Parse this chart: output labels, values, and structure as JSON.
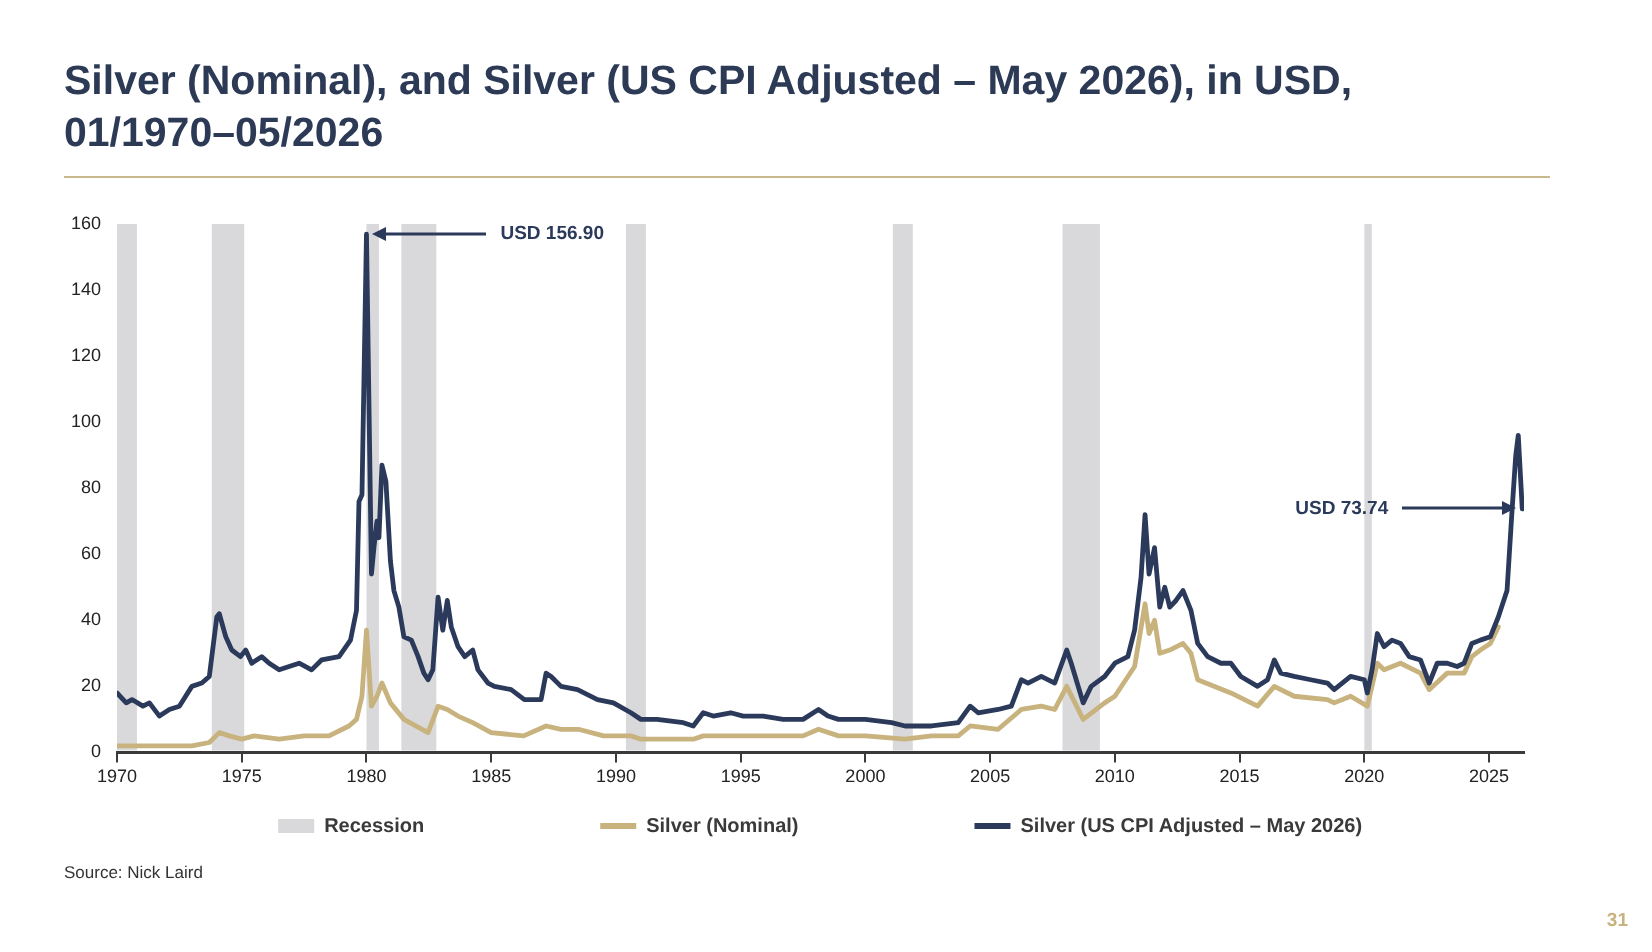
{
  "chart_data": {
    "type": "line",
    "title": "Silver (Nominal), and Silver (US CPI Adjusted – May 2026), in USD, 01/1970–05/2026",
    "xlim": [
      1970,
      2026.4
    ],
    "xticks": [
      1970,
      1975,
      1980,
      1985,
      1990,
      1995,
      2000,
      2005,
      2010,
      2015,
      2020,
      2025
    ],
    "ylim": [
      0,
      160
    ],
    "yticks": [
      0,
      20,
      40,
      60,
      80,
      100,
      120,
      140,
      160
    ],
    "marker": "none",
    "line_style": "solid",
    "legend": "bottom",
    "bands": [
      {
        "axis": "x",
        "from": 1970,
        "to": 1970.8,
        "label": "Recession",
        "color": "#d9d9dc"
      },
      {
        "axis": "x",
        "from": 1973.8,
        "to": 1975.1,
        "color": "#d9d9dc"
      },
      {
        "axis": "x",
        "from": 1980,
        "to": 1980.5,
        "color": "#d9d9dc"
      },
      {
        "axis": "x",
        "from": 1981.4,
        "to": 1982.8,
        "color": "#d9d9dc"
      },
      {
        "axis": "x",
        "from": 1990.4,
        "to": 1991.2,
        "color": "#d9d9dc"
      },
      {
        "axis": "x",
        "from": 2001.1,
        "to": 2001.9,
        "color": "#d9d9dc"
      },
      {
        "axis": "x",
        "from": 2007.9,
        "to": 2009.4,
        "color": "#d9d9dc"
      },
      {
        "axis": "x",
        "from": 2020,
        "to": 2020.3,
        "color": "#d9d9dc"
      }
    ],
    "annotations": [
      {
        "text": "USD 156.90",
        "x": 1980,
        "y": 156.9
      },
      {
        "text": "USD 73.74",
        "x": 2026.33,
        "y": 73.74
      },
      "Source: Nick Laird",
      "31"
    ],
    "series": [
      {
        "name": "Silver (Nominal)",
        "color": "#c8b37e",
        "x": [
          1970,
          1971,
          1972,
          1973,
          1973.7,
          1974.1,
          1974.5,
          1975,
          1975.5,
          1976.5,
          1977.5,
          1978.5,
          1979.3,
          1979.6,
          1979.82,
          1980,
          1980.2,
          1980.42,
          1980.62,
          1980.96,
          1981.5,
          1982.47,
          1982.87,
          1983.24,
          1983.67,
          1984.26,
          1985,
          1986.3,
          1987.2,
          1987.8,
          1988.5,
          1989.5,
          1990.6,
          1991,
          1992.7,
          1993.1,
          1993.5,
          1994.6,
          1995.9,
          1997.5,
          1998.12,
          1998.92,
          2000,
          2001.59,
          2002.65,
          2003.72,
          2004.2,
          2005.32,
          2006.25,
          2007.05,
          2007.59,
          2008.07,
          2008.73,
          2009.59,
          2010,
          2010.79,
          2011.21,
          2011.37,
          2011.59,
          2011.8,
          2012.2,
          2012.73,
          2013.05,
          2013.32,
          2014.65,
          2015.72,
          2016.39,
          2017.19,
          2018.52,
          2018.79,
          2019.45,
          2020.12,
          2020.52,
          2020.79,
          2021.45,
          2022.25,
          2022.6,
          2023.32,
          2024,
          2024.31,
          2024.65,
          2025.05,
          2025.37
        ],
        "values": [
          2,
          2,
          2,
          2,
          3,
          6,
          5,
          4,
          5,
          4,
          5,
          5,
          8,
          10,
          17,
          37,
          14,
          17,
          21,
          15,
          10,
          6,
          14,
          13,
          11,
          9,
          6,
          5,
          8,
          7,
          7,
          5,
          5,
          4,
          4,
          4,
          5,
          5,
          5,
          5,
          7,
          5,
          5,
          4,
          5,
          5,
          8,
          7,
          13,
          14,
          13,
          20,
          10,
          15,
          17,
          26,
          45,
          36,
          40,
          30,
          31,
          33,
          30,
          22,
          18,
          14,
          20,
          17,
          16,
          15,
          17,
          14,
          27,
          25,
          27,
          24,
          19,
          24,
          24,
          29,
          31,
          33,
          38
        ]
      },
      {
        "name": "Silver (US CPI Adjusted – May 2026)",
        "color": "#2b3a5b",
        "x": [
          1970,
          1970.37,
          1970.6,
          1971.04,
          1971.3,
          1971.7,
          1972.1,
          1972.5,
          1973,
          1973.4,
          1973.7,
          1974,
          1974.1,
          1974.36,
          1974.6,
          1974.95,
          1975.16,
          1975.4,
          1975.8,
          1976.1,
          1976.5,
          1976.9,
          1977.3,
          1977.8,
          1978.2,
          1978.9,
          1979.36,
          1979.6,
          1979.7,
          1979.82,
          1980,
          1980.2,
          1980.3,
          1980.42,
          1980.5,
          1980.62,
          1980.78,
          1980.96,
          1981.1,
          1981.3,
          1981.5,
          1981.8,
          1982.07,
          1982.3,
          1982.47,
          1982.66,
          1982.87,
          1983.06,
          1983.24,
          1983.4,
          1983.67,
          1983.94,
          1984.26,
          1984.47,
          1984.87,
          1985.13,
          1985.8,
          1986.33,
          1987,
          1987.2,
          1987.4,
          1987.8,
          1988.46,
          1989.26,
          1989.9,
          1990.6,
          1991,
          1991.65,
          1992.7,
          1993.1,
          1993.5,
          1993.9,
          1994.6,
          1995.1,
          1995.9,
          1996.7,
          1997.5,
          1998.12,
          1998.5,
          1998.92,
          2000,
          2001.05,
          2001.59,
          2002.65,
          2003.72,
          2004.2,
          2004.52,
          2005.32,
          2005.85,
          2006.25,
          2006.52,
          2007.05,
          2007.59,
          2008.07,
          2008.25,
          2008.73,
          2009.05,
          2009.59,
          2010,
          2010.52,
          2010.79,
          2011.05,
          2011.21,
          2011.37,
          2011.59,
          2011.8,
          2012,
          2012.2,
          2012.45,
          2012.73,
          2013.05,
          2013.32,
          2013.72,
          2014.25,
          2014.65,
          2015.05,
          2015.72,
          2016.12,
          2016.39,
          2016.65,
          2017.19,
          2017.85,
          2018.52,
          2018.79,
          2019.45,
          2020,
          2020.12,
          2020.31,
          2020.52,
          2020.79,
          2021.11,
          2021.45,
          2021.8,
          2022.25,
          2022.6,
          2022.92,
          2023.32,
          2023.72,
          2024,
          2024.31,
          2024.65,
          2025.05,
          2025.37,
          2025.72,
          2025.91,
          2026.07,
          2026.17,
          2026.33
        ],
        "values": [
          18,
          15,
          16,
          14,
          15,
          11,
          13,
          14,
          20,
          21,
          23,
          41,
          42,
          35,
          31,
          29,
          31,
          27,
          29,
          27,
          25,
          26,
          27,
          25,
          28,
          29,
          34,
          43,
          76,
          78,
          156.9,
          54,
          62,
          70,
          65,
          87,
          82,
          58,
          49,
          44,
          35,
          34,
          29,
          24,
          22,
          25,
          47,
          37,
          46,
          38,
          32,
          29,
          31,
          25,
          21,
          20,
          19,
          16,
          16,
          24,
          23,
          20,
          19,
          16,
          15,
          12,
          10,
          10,
          9,
          8,
          12,
          11,
          12,
          11,
          11,
          10,
          10,
          13,
          11,
          10,
          10,
          9,
          8,
          8,
          9,
          14,
          12,
          13,
          14,
          22,
          21,
          23,
          21,
          31,
          27,
          15,
          20,
          23,
          27,
          29,
          37,
          53,
          72,
          54,
          62,
          44,
          50,
          44,
          46,
          49,
          43,
          33,
          29,
          27,
          27,
          23,
          20,
          22,
          28,
          24,
          23,
          22,
          21,
          19,
          23,
          22,
          18,
          25,
          36,
          32,
          34,
          33,
          29,
          28,
          21,
          27,
          27,
          26,
          27,
          33,
          34,
          35,
          41,
          49,
          72,
          90,
          96,
          73.74
        ]
      }
    ]
  }
}
